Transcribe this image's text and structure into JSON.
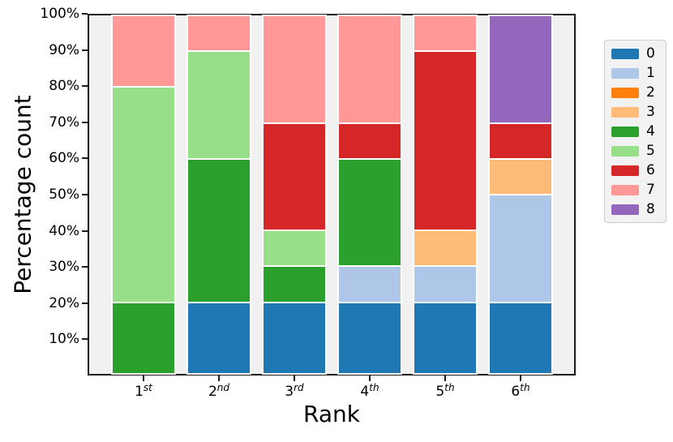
{
  "chart_data": {
    "type": "bar",
    "stacked": true,
    "title": "",
    "xlabel": "Rank",
    "ylabel": "Percentage count",
    "categories": [
      "1st",
      "2nd",
      "3rd",
      "4th",
      "5th",
      "6th"
    ],
    "ytick_labels": [
      "10%",
      "20%",
      "30%",
      "40%",
      "50%",
      "60%",
      "70%",
      "80%",
      "90%",
      "100%"
    ],
    "ylim": [
      0,
      100
    ],
    "grid": false,
    "legend_position": "right",
    "plot_background": "#f1f1f1",
    "bar_edge_color": "#ffffff",
    "spine_color": "#1c1c1c",
    "series": [
      {
        "name": "0",
        "color": "#1f77b4",
        "values": [
          0,
          20,
          20,
          20,
          20,
          20
        ]
      },
      {
        "name": "1",
        "color": "#aec7e8",
        "values": [
          0,
          0,
          0,
          10,
          10,
          30
        ]
      },
      {
        "name": "2",
        "color": "#ff7f0e",
        "values": [
          0,
          0,
          0,
          0,
          0,
          0
        ]
      },
      {
        "name": "3",
        "color": "#ffbb78",
        "values": [
          0,
          0,
          0,
          0,
          10,
          10
        ]
      },
      {
        "name": "4",
        "color": "#2ca02c",
        "values": [
          20,
          40,
          10,
          30,
          0,
          0
        ]
      },
      {
        "name": "5",
        "color": "#98df8a",
        "values": [
          60,
          30,
          10,
          0,
          0,
          0
        ]
      },
      {
        "name": "6",
        "color": "#d62728",
        "values": [
          0,
          0,
          30,
          10,
          50,
          10
        ]
      },
      {
        "name": "7",
        "color": "#ff9896",
        "values": [
          20,
          10,
          30,
          30,
          10,
          0
        ]
      },
      {
        "name": "8",
        "color": "#9467bd",
        "values": [
          0,
          0,
          0,
          0,
          0,
          30
        ]
      }
    ]
  }
}
